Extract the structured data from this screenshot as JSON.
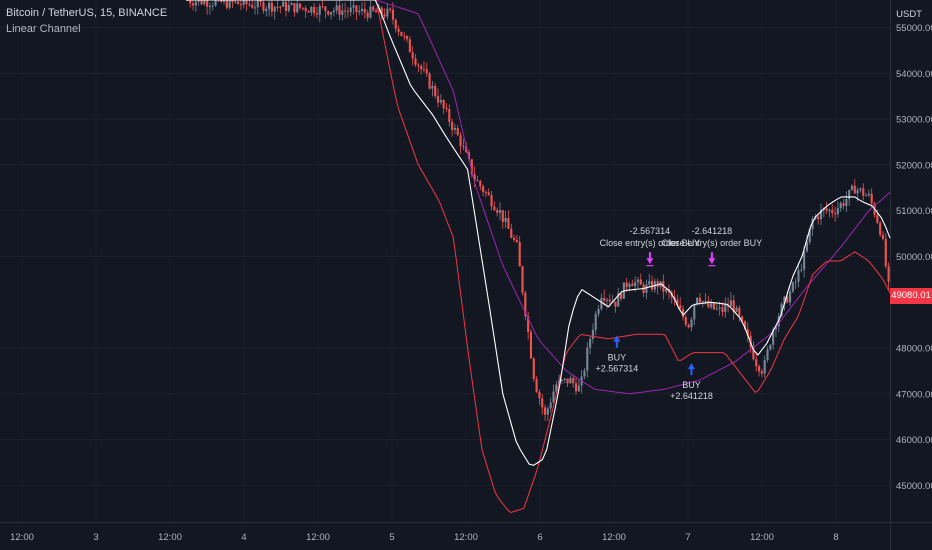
{
  "header": {
    "symbol_title": "Bitcoin / TetherUS, 15, BINANCE",
    "indicator": "Linear Channel",
    "axis_unit": "USDT",
    "last_price": "49080.01"
  },
  "colors": {
    "background": "#131722",
    "up_candle": "#758696",
    "down_candle": "#ef5350",
    "basis_line": "#ffffff",
    "lower_band": "#f23645",
    "slow_ma": "#9c27b0",
    "buy_marker": "#2962ff",
    "close_marker": "#e040fb",
    "price_tag": "#f23645"
  },
  "chart_data": {
    "type": "candlestick",
    "title": "Bitcoin / TetherUS, 15, BINANCE",
    "ylabel": "USDT",
    "ylim": [
      44200,
      55600
    ],
    "y_ticks": [
      "55000.00",
      "54000.00",
      "53000.00",
      "52000.00",
      "51000.00",
      "50000.00",
      "48000.00",
      "47000.00",
      "46000.00",
      "45000.00"
    ],
    "x_ticks": [
      "12:00",
      "3",
      "12:00",
      "4",
      "12:00",
      "5",
      "12:00",
      "6",
      "12:00",
      "7",
      "12:00",
      "8"
    ],
    "price_anchors": [
      [
        0.0,
        55600
      ],
      [
        0.29,
        55300
      ],
      [
        0.33,
        54200
      ],
      [
        0.36,
        53400
      ],
      [
        0.39,
        52500
      ],
      [
        0.41,
        51700
      ],
      [
        0.445,
        51000
      ],
      [
        0.47,
        50200
      ],
      [
        0.495,
        47300
      ],
      [
        0.51,
        46500
      ],
      [
        0.525,
        47200
      ],
      [
        0.545,
        47300
      ],
      [
        0.56,
        47100
      ],
      [
        0.575,
        48300
      ],
      [
        0.59,
        49200
      ],
      [
        0.61,
        49000
      ],
      [
        0.63,
        49500
      ],
      [
        0.65,
        49300
      ],
      [
        0.67,
        49400
      ],
      [
        0.69,
        49100
      ],
      [
        0.705,
        48700
      ],
      [
        0.715,
        48500
      ],
      [
        0.725,
        49200
      ],
      [
        0.74,
        48900
      ],
      [
        0.76,
        48800
      ],
      [
        0.775,
        49000
      ],
      [
        0.795,
        48300
      ],
      [
        0.81,
        47700
      ],
      [
        0.82,
        47500
      ],
      [
        0.835,
        48500
      ],
      [
        0.85,
        49000
      ],
      [
        0.865,
        49400
      ],
      [
        0.878,
        50000
      ],
      [
        0.89,
        50800
      ],
      [
        0.905,
        51000
      ],
      [
        0.92,
        51000
      ],
      [
        0.935,
        51200
      ],
      [
        0.95,
        51500
      ],
      [
        0.96,
        51400
      ],
      [
        0.97,
        51300
      ],
      [
        0.98,
        50900
      ],
      [
        0.988,
        50500
      ],
      [
        1.0,
        49080
      ]
    ],
    "basis_anchors": [
      [
        0.0,
        55600
      ],
      [
        0.27,
        55600
      ],
      [
        0.29,
        54800
      ],
      [
        0.32,
        53700
      ],
      [
        0.35,
        53100
      ],
      [
        0.37,
        52600
      ],
      [
        0.4,
        51900
      ],
      [
        0.43,
        49000
      ],
      [
        0.45,
        47000
      ],
      [
        0.47,
        45900
      ],
      [
        0.49,
        45400
      ],
      [
        0.51,
        45600
      ],
      [
        0.53,
        47100
      ],
      [
        0.545,
        48600
      ],
      [
        0.56,
        49300
      ],
      [
        0.58,
        49100
      ],
      [
        0.6,
        48900
      ],
      [
        0.62,
        49250
      ],
      [
        0.65,
        49300
      ],
      [
        0.675,
        49400
      ],
      [
        0.69,
        49200
      ],
      [
        0.705,
        48700
      ],
      [
        0.72,
        48950
      ],
      [
        0.745,
        49000
      ],
      [
        0.77,
        48950
      ],
      [
        0.79,
        48600
      ],
      [
        0.81,
        47800
      ],
      [
        0.825,
        48100
      ],
      [
        0.845,
        48700
      ],
      [
        0.86,
        49500
      ],
      [
        0.875,
        50000
      ],
      [
        0.89,
        50800
      ],
      [
        0.91,
        51100
      ],
      [
        0.93,
        51300
      ],
      [
        0.95,
        51300
      ],
      [
        0.96,
        51200
      ],
      [
        0.975,
        51100
      ],
      [
        0.99,
        50800
      ],
      [
        1.0,
        50400
      ]
    ],
    "lower_anchors": [
      [
        0.27,
        55600
      ],
      [
        0.3,
        53300
      ],
      [
        0.33,
        52000
      ],
      [
        0.36,
        51200
      ],
      [
        0.38,
        50400
      ],
      [
        0.4,
        48000
      ],
      [
        0.42,
        45800
      ],
      [
        0.44,
        44800
      ],
      [
        0.46,
        44400
      ],
      [
        0.48,
        44500
      ],
      [
        0.5,
        45400
      ],
      [
        0.52,
        46600
      ],
      [
        0.54,
        47900
      ],
      [
        0.56,
        48300
      ],
      [
        0.6,
        48200
      ],
      [
        0.64,
        48300
      ],
      [
        0.68,
        48300
      ],
      [
        0.7,
        47700
      ],
      [
        0.72,
        47900
      ],
      [
        0.745,
        47900
      ],
      [
        0.765,
        47900
      ],
      [
        0.79,
        47400
      ],
      [
        0.81,
        47000
      ],
      [
        0.83,
        47500
      ],
      [
        0.85,
        48200
      ],
      [
        0.87,
        48700
      ],
      [
        0.89,
        49600
      ],
      [
        0.91,
        49900
      ],
      [
        0.93,
        49900
      ],
      [
        0.95,
        50100
      ],
      [
        0.97,
        49900
      ],
      [
        0.99,
        49500
      ],
      [
        1.0,
        49200
      ]
    ],
    "slow_ma_anchors": [
      [
        0.27,
        55600
      ],
      [
        0.33,
        55300
      ],
      [
        0.38,
        53600
      ],
      [
        0.41,
        51600
      ],
      [
        0.45,
        49800
      ],
      [
        0.5,
        48200
      ],
      [
        0.54,
        47500
      ],
      [
        0.58,
        47100
      ],
      [
        0.63,
        47000
      ],
      [
        0.68,
        47100
      ],
      [
        0.73,
        47300
      ],
      [
        0.78,
        47700
      ],
      [
        0.83,
        48300
      ],
      [
        0.88,
        49300
      ],
      [
        0.93,
        50200
      ],
      [
        0.97,
        51000
      ],
      [
        1.0,
        51400
      ]
    ],
    "annotations": [
      {
        "kind": "buy",
        "bar": 0.612,
        "price": 48400,
        "line1": "BUY",
        "line2": "+2.567314"
      },
      {
        "kind": "close",
        "bar": 0.659,
        "price": 49700,
        "line1": "-2.567314",
        "line2": "Close entry(s) order BUY"
      },
      {
        "kind": "buy",
        "bar": 0.718,
        "price": 47800,
        "line1": "BUY",
        "line2": "+2.641218"
      },
      {
        "kind": "close",
        "bar": 0.747,
        "price": 49700,
        "line1": "-2.641218",
        "line2": "Close entry(s) order BUY"
      }
    ]
  }
}
